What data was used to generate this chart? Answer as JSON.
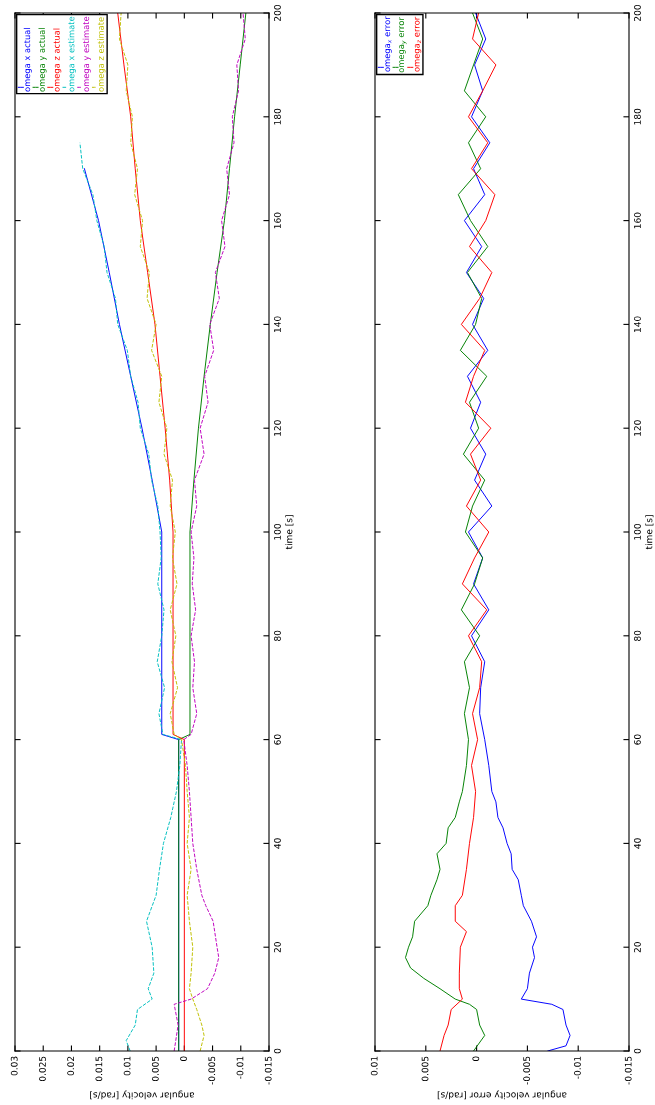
{
  "chart_data": [
    {
      "type": "line",
      "xlabel": "angular velocity [rad/s]",
      "ylabel": "time [s]",
      "ylim": [
        0,
        200
      ],
      "yticks": [
        0,
        20,
        40,
        60,
        80,
        100,
        120,
        140,
        160,
        180,
        200
      ],
      "xlim": [
        0.03,
        -0.015
      ],
      "xticks": [
        -0.015,
        -0.01,
        -0.005,
        0,
        0.005,
        0.01,
        0.015,
        0.02,
        0.025,
        0.03
      ],
      "legend": "top left",
      "grid": false,
      "series": [
        {
          "name": "omega x actual",
          "color": "#0000ff",
          "line_style": "solid",
          "values": [
            0,
            60,
            61,
            100,
            110,
            120,
            130,
            140,
            150,
            160,
            170
          ],
          "x": [
            0.001,
            0.001,
            0.004,
            0.004,
            0.0057,
            0.0075,
            0.0095,
            0.0115,
            0.0133,
            0.0152,
            0.0177
          ]
        },
        {
          "name": "omega y actual",
          "color": "#008000",
          "line_style": "solid",
          "values": [
            0,
            60,
            61,
            100,
            110,
            120,
            130,
            140,
            150,
            160,
            170,
            180,
            190,
            200
          ],
          "x": [
            0.001,
            0.001,
            -0.001,
            -0.001,
            -0.0017,
            -0.0025,
            -0.0035,
            -0.0046,
            -0.0058,
            -0.0071,
            -0.008,
            -0.0089,
            -0.0099,
            -0.0109
          ]
        },
        {
          "name": "omega z actual",
          "color": "#ff0000",
          "line_style": "solid",
          "values": [
            0,
            60,
            61,
            100,
            110,
            120,
            130,
            140,
            150,
            160,
            170,
            180,
            190,
            200
          ],
          "x": [
            0,
            0,
            0.002,
            0.002,
            0.0026,
            0.0034,
            0.0043,
            0.0052,
            0.0065,
            0.0078,
            0.0087,
            0.0095,
            0.0107,
            0.0118
          ]
        },
        {
          "name": "omega x estimate",
          "color": "#00bfbf",
          "line_style": "dashed",
          "values": [
            0,
            2,
            5,
            8,
            10,
            12,
            15,
            20,
            25,
            30,
            35,
            40,
            45,
            50,
            55,
            60,
            61,
            65,
            70,
            75,
            80,
            85,
            90,
            95,
            100,
            105,
            110,
            115,
            120,
            125,
            130,
            135,
            140,
            145,
            150,
            155,
            160,
            165,
            170,
            175
          ],
          "x": [
            0.0096,
            0.0103,
            0.0087,
            0.0083,
            0.0057,
            0.0064,
            0.0054,
            0.0057,
            0.0067,
            0.005,
            0.0044,
            0.0037,
            0.0024,
            0.0014,
            0.0008,
            0.0005,
            0.0038,
            0.0045,
            0.0035,
            0.0048,
            0.004,
            0.0036,
            0.0047,
            0.0041,
            0.0043,
            0.0047,
            0.0058,
            0.0063,
            0.0078,
            0.0082,
            0.0095,
            0.0101,
            0.0118,
            0.0122,
            0.0137,
            0.0142,
            0.0155,
            0.0162,
            0.018,
            0.0185
          ]
        },
        {
          "name": "omega y estimate",
          "color": "#bf00bf",
          "line_style": "dashed",
          "values": [
            0,
            5,
            9,
            10,
            12,
            15,
            18,
            20,
            25,
            28,
            30,
            35,
            40,
            45,
            50,
            55,
            60,
            61,
            65,
            70,
            75,
            80,
            85,
            90,
            95,
            100,
            105,
            110,
            115,
            120,
            125,
            130,
            135,
            140,
            145,
            150,
            155,
            160,
            165,
            170,
            175,
            180,
            185,
            190,
            195,
            200
          ],
          "x": [
            0.0018,
            0.0011,
            0.0018,
            -0.0012,
            -0.0041,
            -0.0054,
            -0.0061,
            -0.0058,
            -0.0051,
            -0.0038,
            -0.0031,
            -0.0022,
            -0.0015,
            -0.0012,
            -0.0009,
            -0.0005,
            0.0001,
            -0.0012,
            -0.0022,
            -0.0015,
            -0.0018,
            -0.0012,
            -0.002,
            -0.0014,
            -0.0017,
            -0.0012,
            -0.0022,
            -0.0018,
            -0.0035,
            -0.0028,
            -0.0042,
            -0.0036,
            -0.0052,
            -0.0045,
            -0.0062,
            -0.0055,
            -0.0072,
            -0.0066,
            -0.008,
            -0.0075,
            -0.0088,
            -0.0085,
            -0.0096,
            -0.0093,
            -0.0108,
            -0.0104
          ]
        },
        {
          "name": "omega z estimate",
          "color": "#bfbf00",
          "line_style": "dashed",
          "values": [
            0,
            3,
            5,
            8,
            10,
            12,
            15,
            20,
            25,
            30,
            35,
            40,
            45,
            50,
            55,
            60,
            61,
            65,
            70,
            75,
            80,
            85,
            90,
            95,
            100,
            105,
            110,
            115,
            120,
            125,
            130,
            135,
            140,
            145,
            150,
            155,
            160,
            165,
            170,
            175,
            180,
            185,
            190,
            195,
            200
          ],
          "x": [
            -0.0028,
            -0.0035,
            -0.0031,
            -0.0022,
            -0.0015,
            -0.0009,
            -0.0012,
            -0.0015,
            -0.0009,
            -0.0005,
            -0.0012,
            -0.0005,
            -0.0009,
            -0.0005,
            -0.0002,
            0.0005,
            0.0018,
            0.0025,
            0.0012,
            0.0022,
            0.0015,
            0.0025,
            0.0013,
            0.0021,
            0.0016,
            0.0025,
            0.0021,
            0.0036,
            0.0031,
            0.0045,
            0.004,
            0.0058,
            0.005,
            0.0066,
            0.0062,
            0.0078,
            0.0074,
            0.0088,
            0.0083,
            0.0095,
            0.0092,
            0.0103,
            0.01,
            0.0115,
            0.0112
          ]
        }
      ]
    },
    {
      "type": "line",
      "xlabel": "angular velocity error [rad/s]",
      "ylabel": "time [s]",
      "ylim": [
        0,
        200
      ],
      "yticks": [
        0,
        20,
        40,
        60,
        80,
        100,
        120,
        140,
        160,
        180,
        200
      ],
      "xlim": [
        0.01,
        -0.015
      ],
      "xticks": [
        -0.015,
        -0.01,
        -0.005,
        0,
        0.005,
        0.01
      ],
      "legend": "top left",
      "grid": false,
      "series": [
        {
          "name": "omega$_{x}$ error",
          "color": "#0000ff",
          "line_style": "solid",
          "values": [
            0,
            1,
            3,
            5,
            8,
            9,
            10,
            12,
            15,
            18,
            20,
            22,
            25,
            28,
            30,
            33,
            35,
            38,
            40,
            43,
            45,
            48,
            50,
            55,
            60,
            65,
            70,
            75,
            80,
            85,
            90,
            95,
            100,
            105,
            110,
            115,
            120,
            125,
            130,
            135,
            140,
            145,
            150,
            155,
            160,
            165,
            170,
            175,
            180,
            185,
            190,
            195,
            200
          ],
          "x": [
            -0.007,
            -0.0088,
            -0.0092,
            -0.0088,
            -0.0085,
            -0.0074,
            -0.0044,
            -0.005,
            -0.0052,
            -0.0057,
            -0.0055,
            -0.0059,
            -0.0054,
            -0.0046,
            -0.0044,
            -0.0041,
            -0.0035,
            -0.0034,
            -0.003,
            -0.0026,
            -0.0021,
            -0.0019,
            -0.0015,
            -0.0012,
            -0.0008,
            -0.0003,
            -0.0004,
            -0.0008,
            0.0005,
            -0.0012,
            0.0003,
            -0.0006,
            0.0008,
            -0.0015,
            0.0002,
            -0.0009,
            0.0006,
            -0.0004,
            0.0009,
            -0.0011,
            0.0004,
            -0.0007,
            0.001,
            -0.0005,
            0.0012,
            -0.0008,
            0.0003,
            -0.0013,
            0.0005,
            -0.0006,
            0.0002,
            -0.0009,
            0.0001
          ]
        },
        {
          "name": "omega$_{y}$ error",
          "color": "#008000",
          "line_style": "solid",
          "values": [
            0,
            3,
            5,
            8,
            9,
            10,
            12,
            14,
            16,
            18,
            20,
            22,
            25,
            28,
            30,
            33,
            35,
            38,
            40,
            43,
            45,
            48,
            50,
            55,
            60,
            65,
            70,
            75,
            80,
            85,
            90,
            95,
            100,
            105,
            110,
            115,
            120,
            125,
            130,
            135,
            140,
            145,
            150,
            155,
            160,
            165,
            170,
            175,
            180,
            185,
            190,
            195,
            200
          ],
          "x": [
            0.0003,
            -0.0008,
            -0.0003,
            0,
            0.0007,
            0.0021,
            0.0036,
            0.0052,
            0.0065,
            0.007,
            0.0067,
            0.0063,
            0.0061,
            0.0048,
            0.0045,
            0.0039,
            0.0036,
            0.0039,
            0.003,
            0.0028,
            0.0021,
            0.0017,
            0.0014,
            0.001,
            0.0008,
            0.0012,
            0.0007,
            0.0012,
            -0.0003,
            0.0015,
            0.0002,
            -0.0006,
            0.0011,
            0.0004,
            -0.0008,
            0.0013,
            -0.0002,
            0.0007,
            -0.001,
            0.0016,
            0.0001,
            -0.0005,
            0.0009,
            -0.0011,
            0.0006,
            0.0018,
            -0.0004,
            0.0008,
            -0.0009,
            0.0012,
            0.0003,
            -0.0006,
            0.0004
          ]
        },
        {
          "name": "omega$_{z}$ error",
          "color": "#ff0000",
          "line_style": "solid",
          "values": [
            0,
            3,
            5,
            8,
            10,
            12,
            15,
            20,
            23,
            25,
            28,
            30,
            35,
            40,
            45,
            50,
            55,
            60,
            65,
            70,
            75,
            80,
            85,
            90,
            95,
            100,
            105,
            110,
            115,
            120,
            125,
            130,
            135,
            140,
            145,
            150,
            155,
            160,
            165,
            170,
            175,
            180,
            185,
            190,
            195,
            200
          ],
          "x": [
            0.0036,
            0.0032,
            0.0028,
            0.0025,
            0.0014,
            0.0017,
            0.0017,
            0.0016,
            0.001,
            0.0021,
            0.0021,
            0.0014,
            0.001,
            0.0007,
            0.0003,
            0.0001,
            0.0005,
            -0.0001,
            0.0004,
            -0.0003,
            -0.0005,
            0.0008,
            -0.001,
            0.0014,
            0.0002,
            -0.0012,
            0.001,
            -0.0004,
            0.0006,
            -0.0014,
            0.0011,
            0.0003,
            -0.0008,
            0.0015,
            -0.0003,
            -0.0015,
            0.0007,
            -0.0009,
            -0.0018,
            0.0005,
            -0.0011,
            0.0008,
            -0.0006,
            -0.0019,
            0.0004,
            -0.0002
          ]
        }
      ]
    }
  ]
}
